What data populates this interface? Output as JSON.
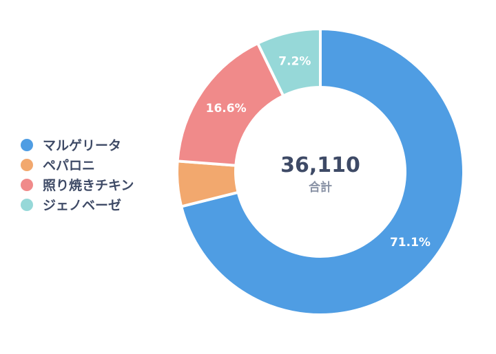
{
  "chart_data": {
    "type": "pie",
    "donut": true,
    "categories": [
      "マルゲリータ",
      "ペパロニ",
      "照り焼きチキン",
      "ジェノベーゼ"
    ],
    "values": [
      71.1,
      5.1,
      16.6,
      7.2
    ],
    "data_labels": [
      "71.1%",
      "",
      "16.6%",
      "7.2%"
    ],
    "colors": [
      "#4f9de3",
      "#f2a86e",
      "#f08a8a",
      "#96d8d8"
    ],
    "center_value": "36,110",
    "center_label": "合計",
    "legend_placement": "left"
  }
}
